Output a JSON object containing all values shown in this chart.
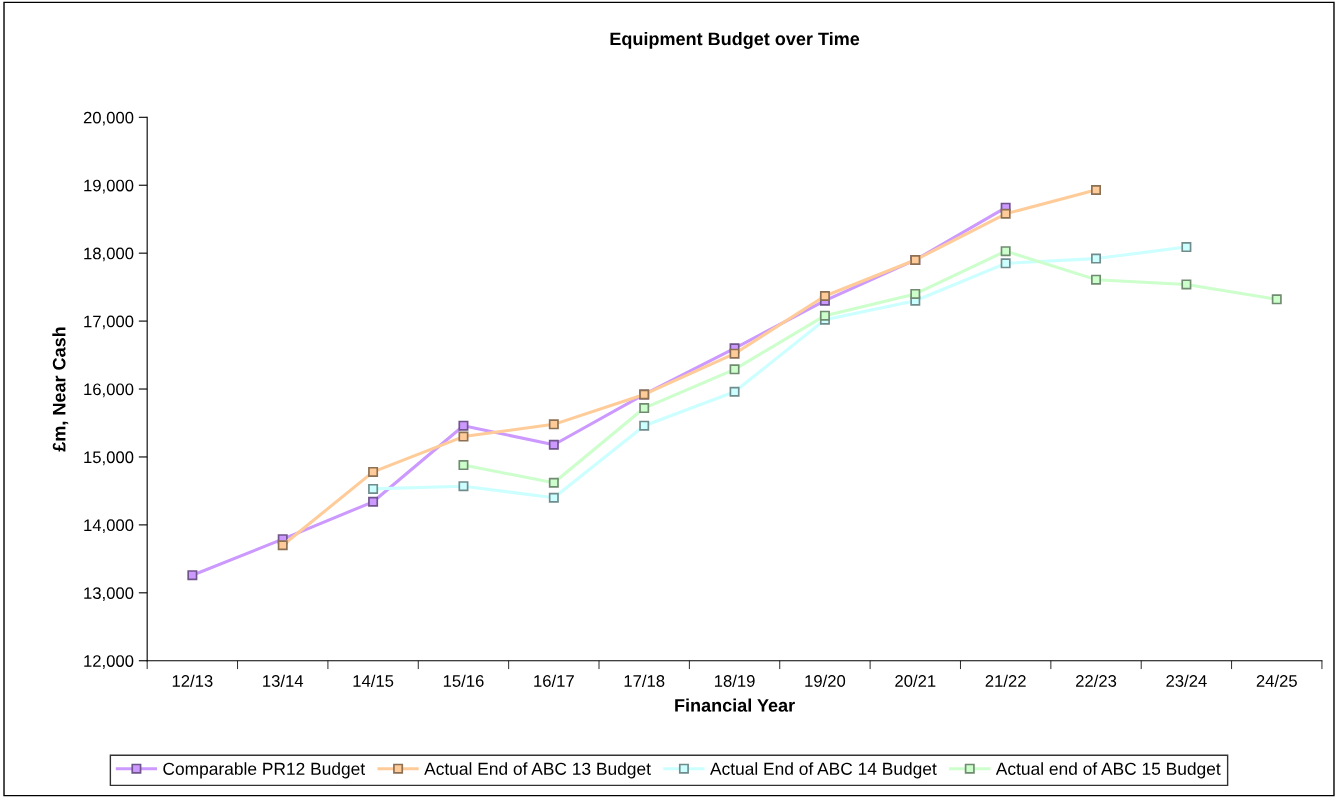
{
  "chart_data": {
    "type": "line",
    "title": "Equipment Budget over Time",
    "xlabel": "Financial Year",
    "ylabel": "£m, Near Cash",
    "categories": [
      "12/13",
      "13/14",
      "14/15",
      "15/16",
      "16/17",
      "17/18",
      "18/19",
      "19/20",
      "20/21",
      "21/22",
      "22/23",
      "23/24",
      "24/25"
    ],
    "series": [
      {
        "name": "Comparable PR12 Budget",
        "color": "#cc99ff",
        "values": [
          13260,
          13790,
          14340,
          15460,
          15180,
          15920,
          16600,
          17300,
          17900,
          18670,
          null,
          null,
          null
        ]
      },
      {
        "name": "Actual End of ABC 13 Budget",
        "color": "#ffcc99",
        "values": [
          null,
          13700,
          14780,
          15300,
          15480,
          15920,
          16520,
          17370,
          17900,
          18580,
          18930,
          null,
          null
        ]
      },
      {
        "name": "Actual End of ABC 14 Budget",
        "color": "#ccffff",
        "values": [
          null,
          null,
          14530,
          14570,
          14400,
          15460,
          15960,
          17020,
          17300,
          17850,
          17920,
          18090,
          null
        ]
      },
      {
        "name": "Actual end of ABC 15 Budget",
        "color": "#ccffcc",
        "values": [
          null,
          null,
          null,
          14880,
          14620,
          15720,
          16290,
          17080,
          17400,
          18030,
          17610,
          17540,
          17320
        ]
      }
    ],
    "ylim": [
      12000,
      20000
    ],
    "yticks": [
      {
        "value": 12000,
        "label": "12,000"
      },
      {
        "value": 13000,
        "label": "13,000"
      },
      {
        "value": 14000,
        "label": "14,000"
      },
      {
        "value": 15000,
        "label": "15,000"
      },
      {
        "value": 16000,
        "label": "16,000"
      },
      {
        "value": 17000,
        "label": "17,000"
      },
      {
        "value": 18000,
        "label": "18,000"
      },
      {
        "value": 19000,
        "label": "19,000"
      },
      {
        "value": 20000,
        "label": "20,000"
      }
    ],
    "grid": false,
    "legend": "bottom",
    "marker": "square",
    "line_style": "solid"
  }
}
